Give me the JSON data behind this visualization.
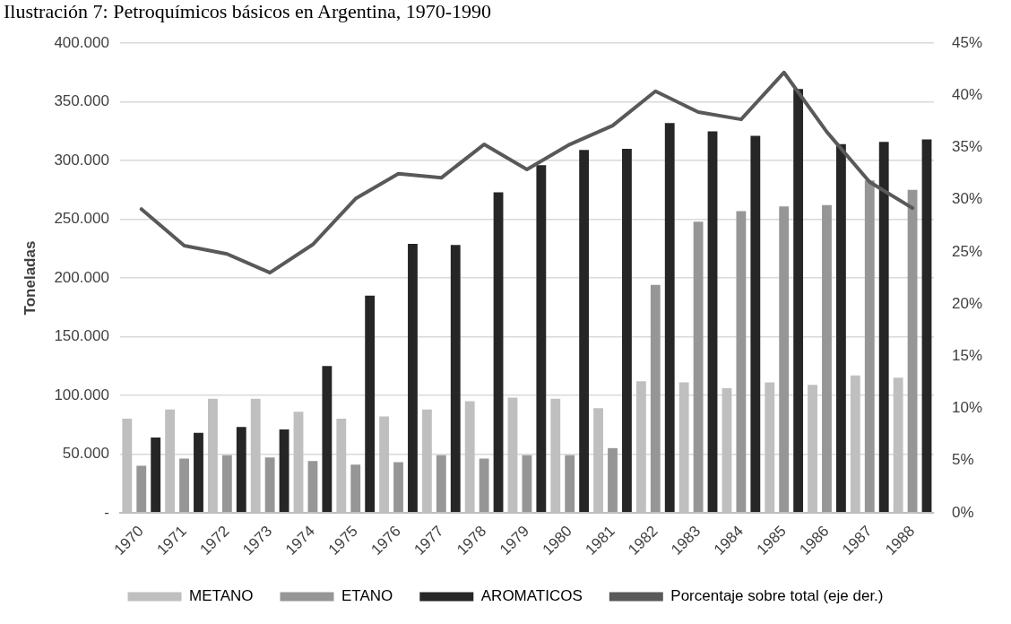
{
  "chart_data": {
    "type": "bar",
    "title": "Ilustración 7: Petroquímicos básicos en Argentina, 1970-1990",
    "ylabel": "Toneladas",
    "categories": [
      "1970",
      "1971",
      "1972",
      "1973",
      "1974",
      "1975",
      "1976",
      "1977",
      "1978",
      "1979",
      "1980",
      "1981",
      "1982",
      "1983",
      "1984",
      "1985",
      "1986",
      "1987",
      "1988"
    ],
    "series": [
      {
        "name": "METANO",
        "color": "#bfbfbf",
        "values": [
          80000,
          88000,
          97000,
          97000,
          86000,
          80000,
          82000,
          88000,
          95000,
          98000,
          97000,
          89000,
          112000,
          111000,
          106000,
          111000,
          109000,
          117000,
          115000
        ]
      },
      {
        "name": "ETANO",
        "color": "#969696",
        "values": [
          40000,
          46000,
          49000,
          47000,
          44000,
          41000,
          43000,
          49000,
          46000,
          49000,
          49000,
          55000,
          194000,
          248000,
          257000,
          261000,
          262000,
          283000,
          275000
        ]
      },
      {
        "name": "AROMATICOS",
        "color": "#262626",
        "values": [
          64000,
          68000,
          73000,
          71000,
          125000,
          185000,
          229000,
          228000,
          273000,
          296000,
          309000,
          310000,
          332000,
          325000,
          321000,
          361000,
          314000,
          316000,
          318000
        ]
      },
      {
        "name": "Porcentaje sobre total (eje der.)",
        "type": "line",
        "axis": "y2",
        "color": "#595959",
        "values": [
          29.1,
          25.6,
          24.8,
          23.0,
          25.7,
          30.1,
          32.5,
          32.1,
          35.3,
          32.9,
          35.3,
          37.1,
          40.4,
          38.4,
          37.7,
          42.2,
          36.5,
          31.7,
          29.2
        ]
      }
    ],
    "ylim": [
      0,
      400000
    ],
    "yticks": [
      {
        "value": 0,
        "label": "-"
      },
      {
        "value": 50000,
        "label": "50.000"
      },
      {
        "value": 100000,
        "label": "100.000"
      },
      {
        "value": 150000,
        "label": "150.000"
      },
      {
        "value": 200000,
        "label": "200.000"
      },
      {
        "value": 250000,
        "label": "250.000"
      },
      {
        "value": 300000,
        "label": "300.000"
      },
      {
        "value": 350000,
        "label": "350.000"
      },
      {
        "value": 400000,
        "label": "400.000"
      }
    ],
    "y2lim": [
      0,
      45
    ],
    "y2ticks": [
      {
        "value": 0,
        "label": "0%"
      },
      {
        "value": 5,
        "label": "5%"
      },
      {
        "value": 10,
        "label": "10%"
      },
      {
        "value": 15,
        "label": "15%"
      },
      {
        "value": 20,
        "label": "20%"
      },
      {
        "value": 25,
        "label": "25%"
      },
      {
        "value": 30,
        "label": "30%"
      },
      {
        "value": 35,
        "label": "35%"
      },
      {
        "value": 40,
        "label": "40%"
      },
      {
        "value": 45,
        "label": "45%"
      }
    ],
    "grid": "y",
    "legend": "bottom",
    "marker": "none"
  }
}
